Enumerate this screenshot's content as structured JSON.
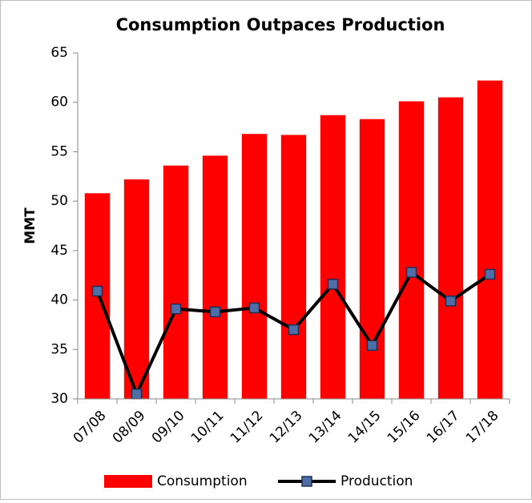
{
  "chart_data": {
    "type": "bar",
    "title": "Consumption Outpaces Production",
    "ylabel": "MMT",
    "categories": [
      "07/08",
      "08/09",
      "09/10",
      "10/11",
      "11/12",
      "12/13",
      "13/14",
      "14/15",
      "15/16",
      "16/17",
      "17/18"
    ],
    "series": [
      {
        "name": "Consumption",
        "type": "bar",
        "color": "#ff0000",
        "values": [
          50.8,
          52.2,
          53.6,
          54.6,
          56.8,
          56.7,
          58.7,
          58.3,
          60.1,
          60.5,
          62.2
        ]
      },
      {
        "name": "Production",
        "type": "line",
        "color": "#000000",
        "marker_color": "#4f6ea8",
        "values": [
          40.9,
          30.5,
          39.1,
          38.8,
          39.2,
          37.0,
          41.6,
          35.4,
          42.8,
          39.9,
          42.6
        ]
      }
    ],
    "ylim": [
      30,
      65
    ],
    "yticks": [
      30,
      35,
      40,
      45,
      50,
      55,
      60,
      65
    ],
    "grid": false,
    "legend": "bottom"
  }
}
